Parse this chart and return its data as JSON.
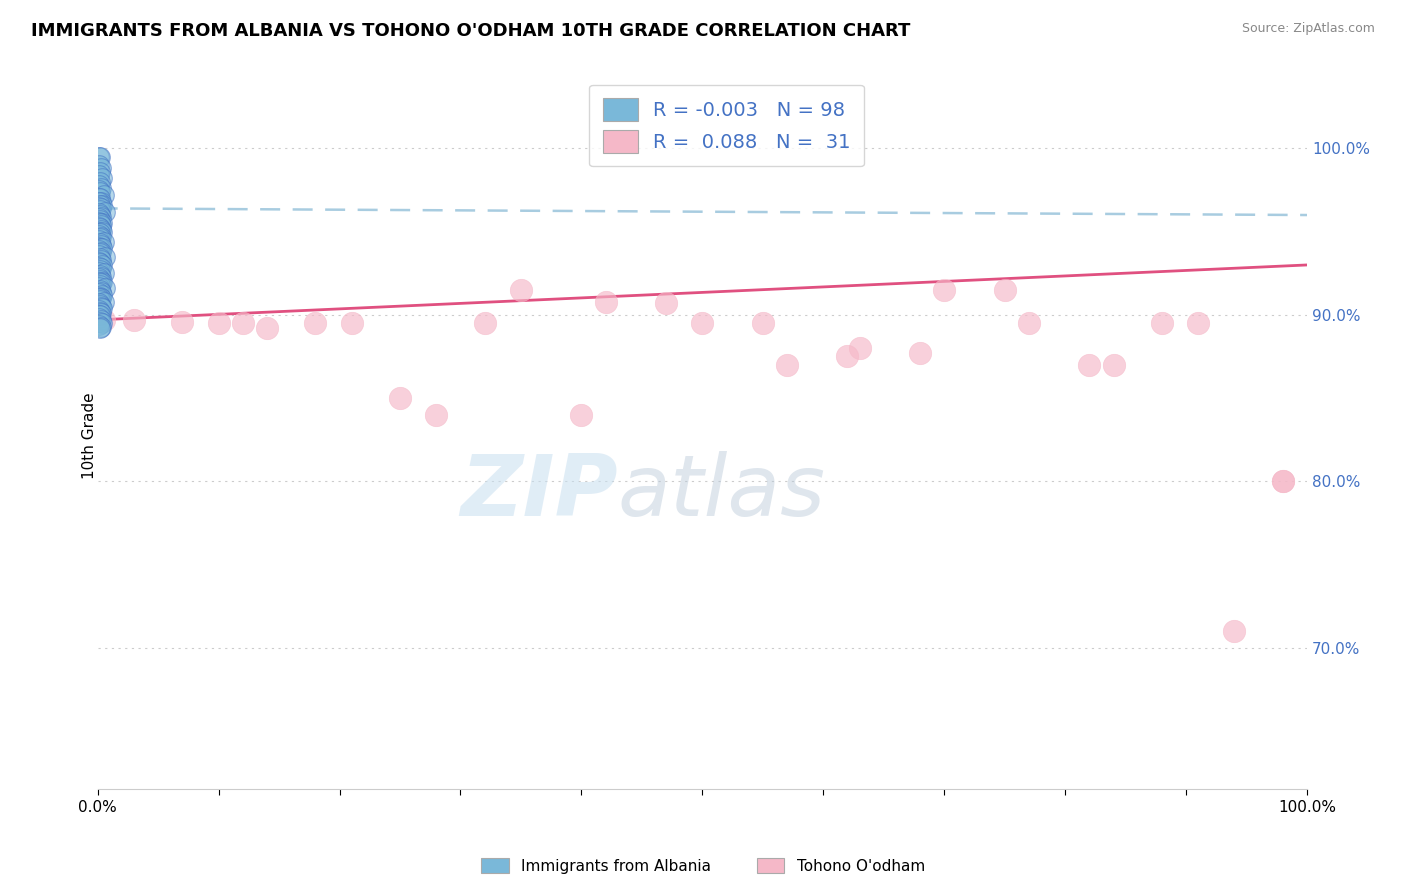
{
  "title": "IMMIGRANTS FROM ALBANIA VS TOHONO O'ODHAM 10TH GRADE CORRELATION CHART",
  "source": "Source: ZipAtlas.com",
  "ylabel": "10th Grade",
  "xlim": [
    0.0,
    1.0
  ],
  "ylim": [
    0.615,
    1.04
  ],
  "yticks": [
    0.7,
    0.8,
    0.9,
    1.0
  ],
  "ytick_labels": [
    "70.0%",
    "80.0%",
    "90.0%",
    "100.0%"
  ],
  "xticks": [
    0.0,
    0.1,
    0.2,
    0.3,
    0.4,
    0.5,
    0.6,
    0.7,
    0.8,
    0.9,
    1.0
  ],
  "xtick_labels": [
    "0.0%",
    "",
    "",
    "",
    "",
    "",
    "",
    "",
    "",
    "",
    "100.0%"
  ],
  "blue_color": "#7ab8d9",
  "blue_dark_color": "#4472c4",
  "pink_color": "#f5b8c8",
  "pink_line_color": "#e05080",
  "blue_line_color": "#a8cce0",
  "legend_R_blue": "-0.003",
  "legend_N_blue": "98",
  "legend_R_pink": "0.088",
  "legend_N_pink": "31",
  "legend_label_blue": "Immigrants from Albania",
  "legend_label_pink": "Tohono O'odham",
  "watermark_zip": "ZIP",
  "watermark_atlas": "atlas",
  "blue_line_y_start": 0.964,
  "blue_line_y_end": 0.96,
  "pink_line_y_start": 0.897,
  "pink_line_y_end": 0.93,
  "blue_scatter_x": [
    0.001,
    0.002,
    0.001,
    0.003,
    0.002,
    0.001,
    0.004,
    0.002,
    0.001,
    0.003,
    0.001,
    0.002,
    0.005,
    0.001,
    0.002,
    0.003,
    0.001,
    0.004,
    0.002,
    0.001,
    0.003,
    0.002,
    0.006,
    0.001,
    0.002,
    0.003,
    0.001,
    0.002,
    0.001,
    0.004,
    0.002,
    0.003,
    0.001,
    0.002,
    0.003,
    0.001,
    0.004,
    0.002,
    0.001,
    0.003,
    0.002,
    0.001,
    0.005,
    0.002,
    0.003,
    0.001,
    0.002,
    0.004,
    0.001,
    0.003,
    0.002,
    0.001,
    0.006,
    0.002,
    0.003,
    0.001,
    0.002,
    0.004,
    0.001,
    0.003,
    0.002,
    0.001,
    0.005,
    0.002,
    0.003,
    0.001,
    0.002,
    0.004,
    0.001,
    0.003,
    0.002,
    0.001,
    0.006,
    0.002,
    0.003,
    0.001,
    0.004,
    0.002,
    0.003,
    0.001,
    0.002,
    0.005,
    0.001,
    0.002,
    0.003,
    0.004,
    0.001,
    0.002,
    0.003,
    0.001,
    0.002,
    0.001,
    0.003,
    0.002,
    0.004,
    0.001,
    0.003,
    0.002
  ],
  "blue_scatter_y": [
    0.995,
    0.995,
    0.99,
    0.988,
    0.986,
    0.984,
    0.982,
    0.98,
    0.978,
    0.976,
    0.975,
    0.974,
    0.972,
    0.97,
    0.97,
    0.968,
    0.968,
    0.966,
    0.966,
    0.965,
    0.964,
    0.963,
    0.962,
    0.961,
    0.96,
    0.959,
    0.958,
    0.957,
    0.956,
    0.955,
    0.955,
    0.954,
    0.953,
    0.952,
    0.951,
    0.95,
    0.95,
    0.949,
    0.948,
    0.947,
    0.946,
    0.945,
    0.944,
    0.943,
    0.942,
    0.941,
    0.94,
    0.94,
    0.939,
    0.938,
    0.937,
    0.936,
    0.935,
    0.934,
    0.933,
    0.932,
    0.931,
    0.93,
    0.929,
    0.928,
    0.927,
    0.926,
    0.925,
    0.924,
    0.923,
    0.922,
    0.921,
    0.92,
    0.92,
    0.919,
    0.918,
    0.917,
    0.916,
    0.915,
    0.914,
    0.913,
    0.912,
    0.911,
    0.91,
    0.91,
    0.909,
    0.908,
    0.907,
    0.906,
    0.905,
    0.904,
    0.903,
    0.902,
    0.901,
    0.9,
    0.9,
    0.898,
    0.897,
    0.896,
    0.895,
    0.894,
    0.893,
    0.892
  ],
  "pink_scatter_x": [
    0.005,
    0.07,
    0.14,
    0.21,
    0.28,
    0.35,
    0.42,
    0.5,
    0.57,
    0.63,
    0.7,
    0.77,
    0.84,
    0.91,
    0.98,
    0.03,
    0.1,
    0.18,
    0.25,
    0.32,
    0.4,
    0.47,
    0.55,
    0.62,
    0.68,
    0.75,
    0.82,
    0.88,
    0.94,
    0.12,
    0.98
  ],
  "pink_scatter_y": [
    0.897,
    0.896,
    0.892,
    0.895,
    0.84,
    0.915,
    0.908,
    0.895,
    0.87,
    0.88,
    0.915,
    0.895,
    0.87,
    0.895,
    0.8,
    0.897,
    0.895,
    0.895,
    0.85,
    0.895,
    0.84,
    0.907,
    0.895,
    0.875,
    0.877,
    0.915,
    0.87,
    0.895,
    0.71,
    0.895,
    0.8
  ]
}
